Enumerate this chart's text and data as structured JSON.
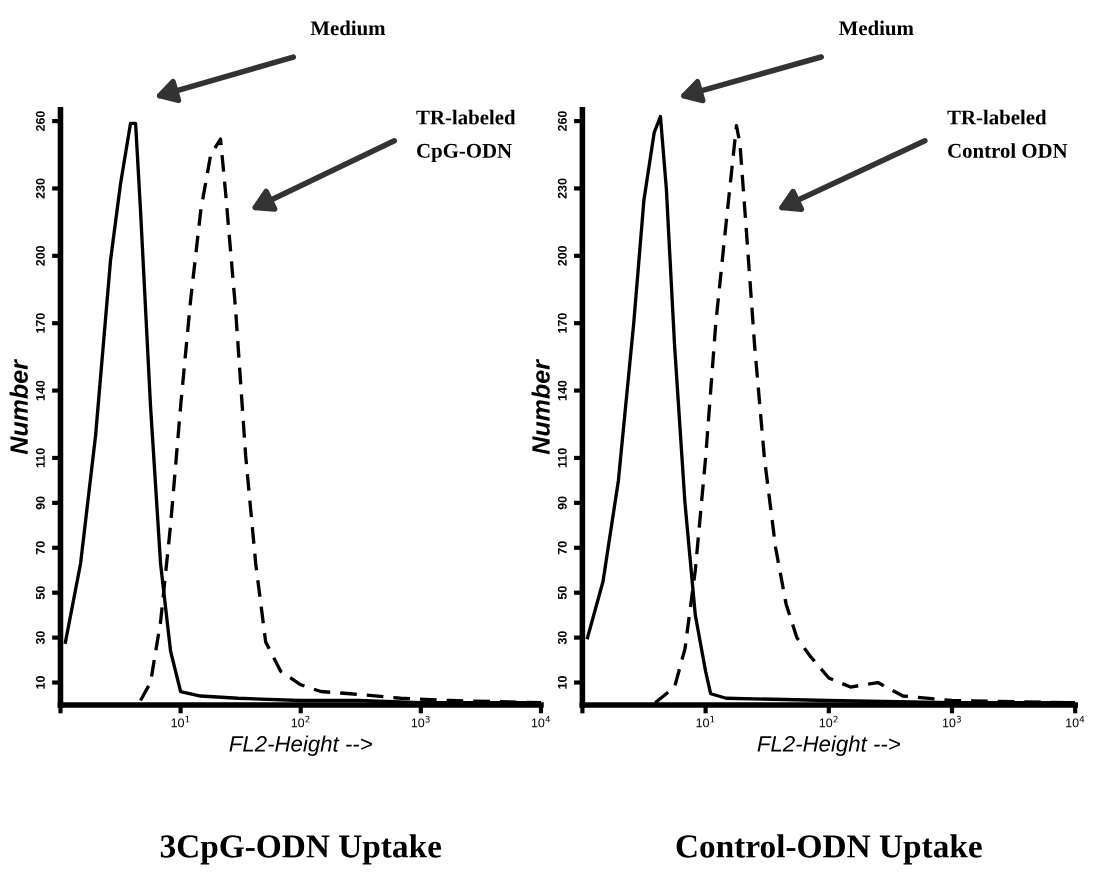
{
  "chart_data": [
    {
      "type": "line",
      "title": "3CpG-ODN Uptake",
      "xlabel": "FL2-Height -->",
      "ylabel": "Number",
      "log": "x",
      "xlim": [
        1,
        10000
      ],
      "ylim": [
        0,
        265
      ],
      "xticks": [
        {
          "value": 1,
          "label": null
        },
        {
          "value": 10,
          "label": "10$^{1}$"
        },
        {
          "value": 100,
          "label": "10$^{2}$"
        },
        {
          "value": 1000,
          "label": "10$^{3}$"
        },
        {
          "value": 10000,
          "label": "10$^{4}$"
        }
      ],
      "yticks": [
        10,
        30,
        50,
        70,
        90,
        110,
        140,
        170,
        200,
        230,
        260
      ],
      "grid": false,
      "legend": false,
      "series": [
        {
          "color": "#000000",
          "line_style": "solid",
          "x": [
            1.1,
            1.47,
            1.96,
            2.61,
            3.16,
            3.83,
            4.22,
            4.64,
            5.62,
            6.81,
            8.25,
            10,
            12.1,
            14.7,
            30,
            100,
            300,
            1000,
            3000,
            10000
          ],
          "values": [
            28,
            63,
            120,
            198,
            232,
            259,
            259,
            220,
            133,
            63,
            24,
            6,
            5,
            4,
            3,
            2,
            2,
            1,
            1,
            1
          ]
        },
        {
          "color": "#000000",
          "line_style": "dashed",
          "x": [
            4.64,
            5.62,
            6.81,
            8.25,
            10,
            12.1,
            14.7,
            17.8,
            21.5,
            23.7,
            28.7,
            34.8,
            42.2,
            51.1,
            68.1,
            100,
            147,
            261,
            681,
            1778,
            10000
          ],
          "values": [
            2,
            10,
            37,
            80,
            133,
            180,
            220,
            245,
            252,
            228,
            176,
            111,
            63,
            28,
            15,
            9,
            6,
            5,
            3,
            2,
            1
          ]
        }
      ],
      "annotations": [
        "Medium",
        "TR-labeled\nCpG-ODN"
      ]
    },
    {
      "type": "line",
      "title": "Control-ODN Uptake",
      "xlabel": "FL2-Height -->",
      "ylabel": "Number",
      "log": "x",
      "xlim": [
        1,
        10000
      ],
      "ylim": [
        0,
        265
      ],
      "xticks": [
        {
          "value": 1,
          "label": null
        },
        {
          "value": 10,
          "label": "10$^{1}$"
        },
        {
          "value": 100,
          "label": "10$^{2}$"
        },
        {
          "value": 1000,
          "label": "10$^{3}$"
        },
        {
          "value": 10000,
          "label": "10$^{4}$"
        }
      ],
      "yticks": [
        10,
        30,
        50,
        70,
        90,
        110,
        140,
        170,
        200,
        230,
        260
      ],
      "grid": false,
      "legend": false,
      "series": [
        {
          "color": "#000000",
          "line_style": "solid",
          "x": [
            1.1,
            1.47,
            1.96,
            2.61,
            3.16,
            3.83,
            4.3,
            4.8,
            5.6,
            6.8,
            8.25,
            10,
            11,
            14.7,
            100,
            1000,
            10000
          ],
          "values": [
            30,
            55,
            100,
            170,
            225,
            255,
            262,
            230,
            160,
            90,
            40,
            15,
            5,
            3,
            2,
            1,
            1
          ]
        },
        {
          "color": "#000000",
          "line_style": "dashed",
          "x": [
            3.9,
            5.6,
            6.8,
            8.25,
            10,
            12.1,
            14.7,
            17.8,
            19,
            21.5,
            25,
            30,
            37,
            45,
            55,
            70,
            100,
            150,
            250,
            400,
            1000,
            10000
          ],
          "values": [
            1,
            8,
            25,
            60,
            110,
            170,
            215,
            258,
            250,
            210,
            160,
            110,
            70,
            45,
            30,
            22,
            12,
            8,
            10,
            4,
            2,
            1
          ]
        }
      ],
      "annotations": [
        "Medium",
        "TR-labeled\nControl ODN"
      ]
    }
  ]
}
